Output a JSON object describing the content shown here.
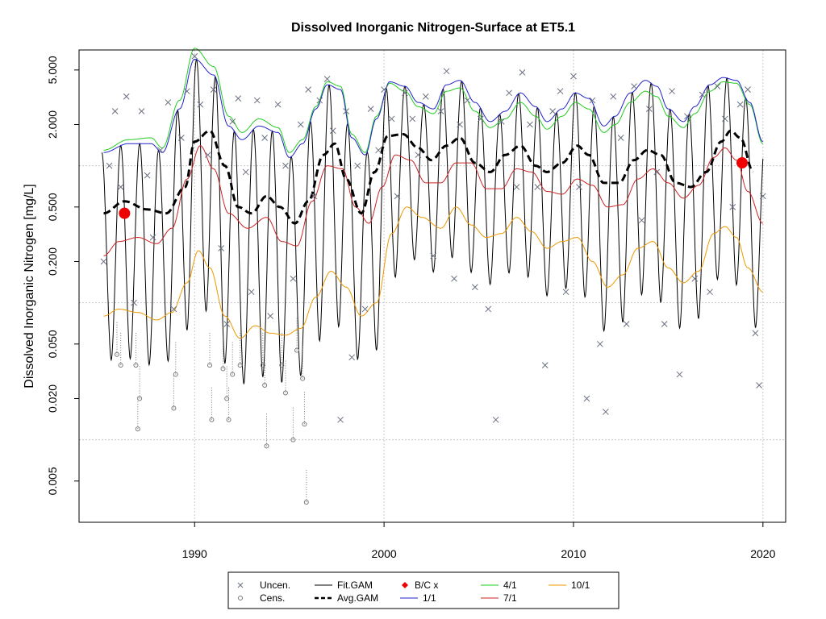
{
  "chart_data": {
    "type": "line",
    "title": "Dissolved Inorganic Nitrogen-Surface at ET5.1",
    "xlabel": "",
    "ylabel": "Dissolved Inorganic Nitrogen [mg/L]",
    "log_y": true,
    "xlim": [
      1983.9,
      2021.2
    ],
    "ylim": [
      0.0025,
      7.0
    ],
    "x_ticks": [
      "1990",
      "2000",
      "2010",
      "2020"
    ],
    "y_ticks": [
      "0.005",
      "0.020",
      "0.050",
      "0.200",
      "0.500",
      "2.000",
      "5.000"
    ],
    "grid": true,
    "legend_position": "bottom-center",
    "legend": [
      {
        "label": "Uncen.",
        "symbol": "x"
      },
      {
        "label": "Cens.",
        "symbol": "circle"
      },
      {
        "label": "Fit.GAM",
        "symbol": "line"
      },
      {
        "label": "Avg.GAM",
        "symbol": "dashed"
      },
      {
        "label": "B/C x",
        "symbol": "diamond"
      },
      {
        "label": "1/1",
        "symbol": "line"
      },
      {
        "label": "4/1",
        "symbol": "line"
      },
      {
        "label": "7/1",
        "symbol": "line"
      },
      {
        "label": "10/1",
        "symbol": "line"
      }
    ],
    "series": [
      {
        "name": "4/1",
        "color": "#22cc22",
        "x": [
          1985.2,
          1986.5,
          1987.7,
          1988.3,
          1989.2,
          1990.0,
          1991.0,
          1991.8,
          1992.5,
          1993.4,
          1994.4,
          1995.0,
          1995.7,
          1996.4,
          1997.0,
          1997.7,
          1998.3,
          1999.0,
          1999.6,
          2000.3,
          2001.1,
          2001.8,
          2002.6,
          2003.3,
          2004.0,
          2004.8,
          2005.6,
          2006.4,
          2007.2,
          2008.0,
          2008.6,
          2009.4,
          2010.1,
          2010.8,
          2011.6,
          2012.2,
          2013.0,
          2013.8,
          2014.4,
          2015.0,
          2015.8,
          2016.4,
          2017.2,
          2017.9,
          2018.6,
          2019.3,
          2020.0
        ],
        "values": [
          1.3,
          1.55,
          1.6,
          1.35,
          3.0,
          7.2,
          5.3,
          2.3,
          1.75,
          2.2,
          1.9,
          1.25,
          1.55,
          2.7,
          4.1,
          3.8,
          1.7,
          1.25,
          2.3,
          4.0,
          3.5,
          2.7,
          2.4,
          3.5,
          3.7,
          2.5,
          1.9,
          2.2,
          2.9,
          2.3,
          1.85,
          2.3,
          2.9,
          2.6,
          1.75,
          2.0,
          2.9,
          3.5,
          3.2,
          2.3,
          1.9,
          2.4,
          3.5,
          4.1,
          4.0,
          2.8,
          1.45
        ]
      },
      {
        "name": "1/1",
        "color": "#2222cc",
        "x": [
          1985.2,
          1986.5,
          1987.7,
          1988.3,
          1989.2,
          1990.0,
          1991.0,
          1991.8,
          1992.5,
          1993.4,
          1994.4,
          1995.0,
          1995.7,
          1996.4,
          1997.0,
          1997.7,
          1998.3,
          1999.0,
          1999.6,
          2000.3,
          2001.1,
          2001.8,
          2002.6,
          2003.3,
          2004.0,
          2004.8,
          2005.6,
          2006.4,
          2007.2,
          2008.0,
          2008.6,
          2009.4,
          2010.1,
          2010.8,
          2011.6,
          2012.2,
          2013.0,
          2013.8,
          2014.4,
          2015.0,
          2015.8,
          2016.4,
          2017.2,
          2017.9,
          2018.6,
          2019.3,
          2020.0
        ],
        "values": [
          1.25,
          1.45,
          1.45,
          1.25,
          2.6,
          6.0,
          4.6,
          1.95,
          1.55,
          1.95,
          1.75,
          1.15,
          1.45,
          2.6,
          3.9,
          3.6,
          1.6,
          1.2,
          2.2,
          4.1,
          3.8,
          2.9,
          2.6,
          3.9,
          4.2,
          2.9,
          2.1,
          2.5,
          3.4,
          2.7,
          2.1,
          2.6,
          3.4,
          3.1,
          1.95,
          2.3,
          3.4,
          4.2,
          3.8,
          2.6,
          2.1,
          2.7,
          3.9,
          4.4,
          4.2,
          2.9,
          1.5
        ]
      },
      {
        "name": "7/1",
        "color": "#cc2222",
        "x": [
          1985.2,
          1986.0,
          1987.0,
          1988.0,
          1988.8,
          1989.6,
          1990.3,
          1991.0,
          1991.8,
          1992.8,
          1993.8,
          1994.6,
          1995.4,
          1996.2,
          1997.0,
          1997.8,
          1998.5,
          1999.2,
          1999.9,
          2000.6,
          2001.4,
          2002.2,
          2003.0,
          2003.8,
          2004.6,
          2005.4,
          2006.2,
          2007.0,
          2007.8,
          2008.6,
          2009.4,
          2010.2,
          2011.0,
          2011.8,
          2012.6,
          2013.4,
          2014.2,
          2015.0,
          2015.8,
          2016.6,
          2017.4,
          2018.0,
          2018.6,
          2019.2,
          2020.0
        ],
        "values": [
          0.22,
          0.28,
          0.3,
          0.27,
          0.35,
          0.8,
          1.4,
          0.95,
          0.45,
          0.35,
          0.42,
          0.28,
          0.26,
          0.55,
          1.0,
          0.95,
          0.5,
          0.38,
          0.7,
          1.2,
          1.1,
          0.75,
          0.75,
          1.05,
          1.05,
          0.68,
          0.68,
          0.95,
          0.9,
          0.65,
          0.62,
          0.8,
          0.72,
          0.5,
          0.52,
          0.8,
          0.95,
          0.75,
          0.58,
          0.72,
          1.15,
          1.35,
          1.1,
          0.65,
          0.38
        ]
      },
      {
        "name": "10/1",
        "color": "#ee9900",
        "x": [
          1985.2,
          1986.0,
          1987.0,
          1988.0,
          1988.8,
          1989.6,
          1990.2,
          1990.8,
          1991.6,
          1992.4,
          1993.2,
          1994.0,
          1994.8,
          1995.6,
          1996.4,
          1997.2,
          1998.0,
          1998.8,
          1999.6,
          2000.4,
          2001.2,
          2002.0,
          2003.0,
          2003.8,
          2004.6,
          2005.4,
          2006.2,
          2007.0,
          2007.8,
          2008.6,
          2009.4,
          2010.2,
          2011.0,
          2011.8,
          2012.6,
          2013.4,
          2014.2,
          2015.0,
          2015.8,
          2016.6,
          2017.4,
          2018.0,
          2018.6,
          2019.2,
          2020.0
        ],
        "values": [
          0.08,
          0.09,
          0.085,
          0.075,
          0.085,
          0.14,
          0.24,
          0.18,
          0.08,
          0.055,
          0.068,
          0.06,
          0.058,
          0.065,
          0.11,
          0.17,
          0.13,
          0.08,
          0.1,
          0.32,
          0.5,
          0.42,
          0.35,
          0.5,
          0.37,
          0.3,
          0.32,
          0.42,
          0.33,
          0.25,
          0.28,
          0.3,
          0.2,
          0.13,
          0.16,
          0.25,
          0.28,
          0.18,
          0.14,
          0.17,
          0.32,
          0.36,
          0.3,
          0.18,
          0.12
        ]
      },
      {
        "name": "Avg.GAM",
        "color": "#000000",
        "dashed": true,
        "x": [
          1985.2,
          1986.3,
          1987.5,
          1988.5,
          1989.5,
          1990.0,
          1990.8,
          1991.6,
          1992.3,
          1993.0,
          1993.8,
          1994.5,
          1995.3,
          1996.0,
          1996.8,
          1997.4,
          1998.0,
          1998.8,
          1999.5,
          2000.2,
          2001.0,
          2001.8,
          2002.5,
          2003.3,
          2004.0,
          2004.8,
          2005.6,
          2006.4,
          2007.2,
          2008.0,
          2008.6,
          2009.4,
          2010.2,
          2010.8,
          2011.6,
          2012.4,
          2013.2,
          2013.9,
          2014.6,
          2015.4,
          2016.2,
          2017.0,
          2017.8,
          2018.3,
          2018.8,
          2019.5
        ],
        "values": [
          0.45,
          0.55,
          0.48,
          0.45,
          0.7,
          1.5,
          1.8,
          1.0,
          0.5,
          0.45,
          0.6,
          0.5,
          0.38,
          0.55,
          1.2,
          1.45,
          0.8,
          0.45,
          0.9,
          1.65,
          1.7,
          1.35,
          1.1,
          1.4,
          1.6,
          1.05,
          0.9,
          1.2,
          1.4,
          1.0,
          0.9,
          1.05,
          1.4,
          1.2,
          0.75,
          0.75,
          1.1,
          1.3,
          1.2,
          0.75,
          0.7,
          0.9,
          1.5,
          1.8,
          1.6,
          0.9
        ]
      }
    ],
    "seasonal_fit": {
      "name": "Fit.GAM",
      "color": "#000000",
      "cycles_per_year": 1
    },
    "bc_points": [
      {
        "x": 1986.3,
        "y": 0.45
      },
      {
        "x": 2018.9,
        "y": 1.05
      }
    ],
    "uncensored_points": [
      [
        1985.2,
        0.2
      ],
      [
        1985.5,
        1.0
      ],
      [
        1985.8,
        2.5
      ],
      [
        1986.1,
        0.7
      ],
      [
        1986.4,
        3.2
      ],
      [
        1986.8,
        0.1
      ],
      [
        1987.2,
        2.5
      ],
      [
        1987.5,
        0.85
      ],
      [
        1987.8,
        0.3
      ],
      [
        1988.2,
        1.3
      ],
      [
        1988.6,
        2.9
      ],
      [
        1988.9,
        0.09
      ],
      [
        1989.3,
        1.6
      ],
      [
        1989.6,
        3.5
      ],
      [
        1990.0,
        6.3
      ],
      [
        1990.3,
        2.8
      ],
      [
        1990.7,
        1.2
      ],
      [
        1991.0,
        3.6
      ],
      [
        1991.4,
        0.25
      ],
      [
        1991.7,
        0.07
      ],
      [
        1992.0,
        2.1
      ],
      [
        1992.3,
        3.1
      ],
      [
        1992.7,
        0.9
      ],
      [
        1993.0,
        0.12
      ],
      [
        1993.3,
        3.0
      ],
      [
        1993.7,
        1.6
      ],
      [
        1994.0,
        0.08
      ],
      [
        1994.4,
        2.8
      ],
      [
        1994.8,
        1.0
      ],
      [
        1995.2,
        0.15
      ],
      [
        1995.6,
        2.0
      ],
      [
        1996.0,
        3.6
      ],
      [
        1996.3,
        0.6
      ],
      [
        1996.6,
        3.0
      ],
      [
        1997.0,
        4.3
      ],
      [
        1997.3,
        1.8
      ],
      [
        1997.7,
        0.014
      ],
      [
        1998.0,
        2.5
      ],
      [
        1998.3,
        0.04
      ],
      [
        1998.6,
        1.0
      ],
      [
        1999.0,
        0.09
      ],
      [
        1999.3,
        2.6
      ],
      [
        1999.7,
        1.3
      ],
      [
        2000.0,
        3.6
      ],
      [
        2000.4,
        2.2
      ],
      [
        2000.7,
        0.6
      ],
      [
        2001.1,
        3.4
      ],
      [
        2001.5,
        2.2
      ],
      [
        2001.8,
        1.2
      ],
      [
        2002.2,
        3.2
      ],
      [
        2002.6,
        0.22
      ],
      [
        2003.0,
        2.5
      ],
      [
        2003.3,
        4.9
      ],
      [
        2003.7,
        0.15
      ],
      [
        2004.0,
        2.0
      ],
      [
        2004.4,
        3.0
      ],
      [
        2004.8,
        0.13
      ],
      [
        2005.1,
        2.2
      ],
      [
        2005.5,
        0.09
      ],
      [
        2005.9,
        0.014
      ],
      [
        2006.2,
        2.1
      ],
      [
        2006.6,
        3.4
      ],
      [
        2007.0,
        0.7
      ],
      [
        2007.3,
        4.8
      ],
      [
        2007.7,
        2.0
      ],
      [
        2008.1,
        0.7
      ],
      [
        2008.5,
        0.035
      ],
      [
        2008.9,
        2.5
      ],
      [
        2009.3,
        3.5
      ],
      [
        2009.6,
        0.12
      ],
      [
        2010.0,
        4.5
      ],
      [
        2010.3,
        0.7
      ],
      [
        2010.7,
        0.02
      ],
      [
        2011.0,
        3.0
      ],
      [
        2011.4,
        0.05
      ],
      [
        2011.7,
        0.016
      ],
      [
        2012.1,
        3.2
      ],
      [
        2012.5,
        1.6
      ],
      [
        2012.8,
        0.07
      ],
      [
        2013.2,
        3.8
      ],
      [
        2013.6,
        0.4
      ],
      [
        2014.0,
        2.6
      ],
      [
        2014.4,
        0.9
      ],
      [
        2014.8,
        0.07
      ],
      [
        2015.2,
        3.5
      ],
      [
        2015.6,
        0.03
      ],
      [
        2016.0,
        2.3
      ],
      [
        2016.4,
        0.15
      ],
      [
        2016.8,
        3.3
      ],
      [
        2017.2,
        0.12
      ],
      [
        2017.6,
        3.8
      ],
      [
        2018.0,
        2.2
      ],
      [
        2018.4,
        0.5
      ],
      [
        2018.8,
        2.8
      ],
      [
        2019.2,
        3.6
      ],
      [
        2019.6,
        0.06
      ],
      [
        2019.8,
        0.025
      ],
      [
        2020.0,
        0.6
      ]
    ],
    "censored_points": [
      [
        1985.9,
        0.042
      ],
      [
        1986.1,
        0.035
      ],
      [
        1986.9,
        0.035
      ],
      [
        1987.0,
        0.012
      ],
      [
        1987.1,
        0.02
      ],
      [
        1988.9,
        0.017
      ],
      [
        1989.0,
        0.03
      ],
      [
        1990.8,
        0.035
      ],
      [
        1990.9,
        0.014
      ],
      [
        1991.5,
        0.033
      ],
      [
        1991.7,
        0.02
      ],
      [
        1991.8,
        0.014
      ],
      [
        1992.0,
        0.03
      ],
      [
        1992.4,
        0.035
      ],
      [
        1993.6,
        0.035
      ],
      [
        1993.7,
        0.025
      ],
      [
        1993.8,
        0.009
      ],
      [
        1994.6,
        0.035
      ],
      [
        1994.8,
        0.022
      ],
      [
        1995.2,
        0.01
      ],
      [
        1995.4,
        0.045
      ],
      [
        1995.7,
        0.028
      ],
      [
        1995.8,
        0.013
      ],
      [
        1995.9,
        0.0035
      ]
    ]
  }
}
